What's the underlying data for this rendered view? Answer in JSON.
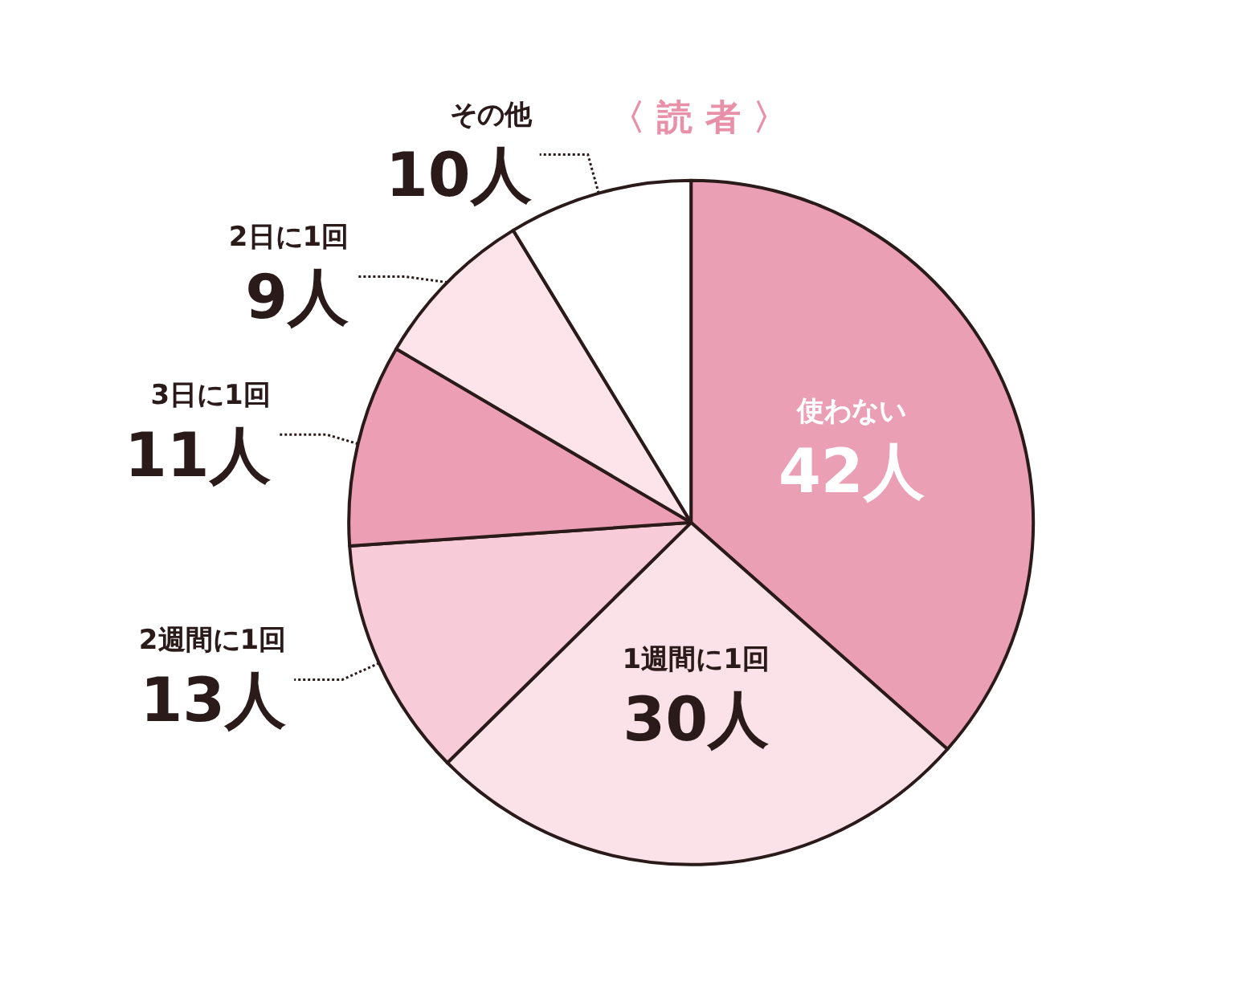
{
  "chart_data": {
    "type": "pie",
    "title": "〈 読 者 〉",
    "categories": [
      "使わない",
      "1週間に1回",
      "2週間に1回",
      "3日に1回",
      "2日に1回",
      "その他"
    ],
    "values": [
      42,
      30,
      13,
      11,
      9,
      10
    ],
    "value_labels": [
      "42人",
      "30人",
      "13人",
      "11人",
      "9人",
      "10人"
    ],
    "colors": [
      "#eb9fb5",
      "#fbe1e8",
      "#f7ccd8",
      "#ec9fb4",
      "#fce4ea",
      "#ffffff"
    ]
  }
}
